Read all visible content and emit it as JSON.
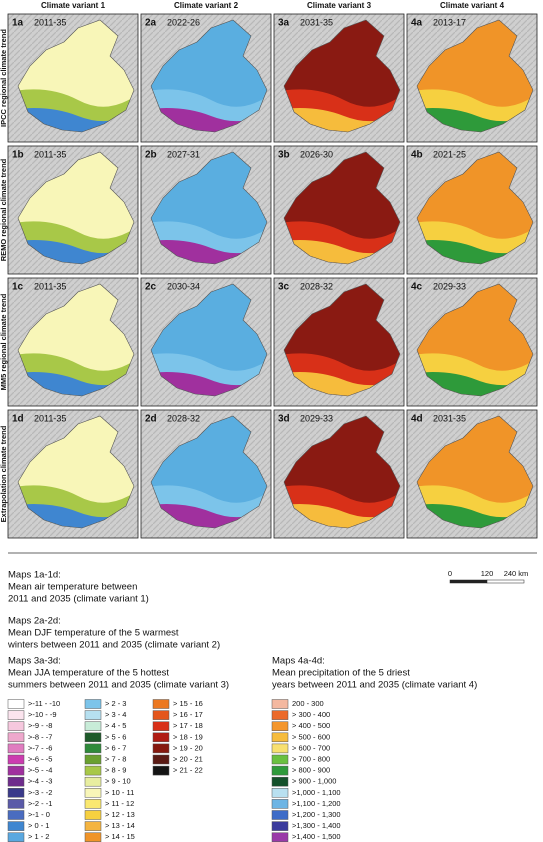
{
  "column_headers": [
    "Climate variant 1",
    "Climate variant 2",
    "Climate variant 3",
    "Climate variant 4"
  ],
  "row_labels": [
    "IPCC regional climate trend",
    "REMO regional climate trend",
    "MM5 regional climate trend",
    "Extrapolation climate trend"
  ],
  "panels": [
    [
      {
        "id": "1a",
        "period": "2011-35"
      },
      {
        "id": "2a",
        "period": "2022-26"
      },
      {
        "id": "3a",
        "period": "2031-35"
      },
      {
        "id": "4a",
        "period": "2013-17"
      }
    ],
    [
      {
        "id": "1b",
        "period": "2011-35"
      },
      {
        "id": "2b",
        "period": "2027-31"
      },
      {
        "id": "3b",
        "period": "2026-30"
      },
      {
        "id": "4b",
        "period": "2021-25"
      }
    ],
    [
      {
        "id": "1c",
        "period": "2011-35"
      },
      {
        "id": "2c",
        "period": "2030-34"
      },
      {
        "id": "3c",
        "period": "2028-32"
      },
      {
        "id": "4c",
        "period": "2029-33"
      }
    ],
    [
      {
        "id": "1d",
        "period": "2011-35"
      },
      {
        "id": "2d",
        "period": "2028-32"
      },
      {
        "id": "3d",
        "period": "2029-33"
      },
      {
        "id": "4d",
        "period": "2031-35"
      }
    ]
  ],
  "captions": [
    {
      "heading": "Maps 1a-1d:",
      "lines": [
        "Mean air temperature between",
        "2011 and 2035 (climate variant 1)"
      ]
    },
    {
      "heading": "Maps 2a-2d:",
      "lines": [
        "Mean DJF temperature of the 5 warmest",
        "winters between 2011 and 2035 (climate variant 2)"
      ]
    },
    {
      "heading": "Maps 3a-3d:",
      "lines": [
        "Mean JJA temperature of the 5 hottest",
        "summers between 2011 and 2035 (climate variant 3)"
      ]
    },
    {
      "heading": "Maps 4a-4d:",
      "lines": [
        "Mean precipitation of the 5 driest",
        "years between 2011 and 2035 (climate variant 4)"
      ]
    }
  ],
  "scale_bar": [
    "0",
    "120",
    "240 km"
  ],
  "legend": [
    [
      {
        "label": ">-11 - -10",
        "color": "#ffffff"
      },
      {
        "label": ">-10 - -9",
        "color": "#fbe4ee"
      },
      {
        "label": ">-9 - -8",
        "color": "#f6c8de"
      },
      {
        "label": ">-8 - -7",
        "color": "#eea8cc"
      },
      {
        "label": ">-7 - -6",
        "color": "#e07cc0"
      },
      {
        "label": ">-6 - -5",
        "color": "#cc3cb0"
      },
      {
        "label": ">-5 - -4",
        "color": "#a0309e"
      },
      {
        "label": ">-4 - -3",
        "color": "#6e2c8c"
      },
      {
        "label": ">-3 - -2",
        "color": "#3a3a8a"
      },
      {
        "label": ">-2 - -1",
        "color": "#5a5aa8"
      },
      {
        "label": ">-1 - 0",
        "color": "#4a6cc0"
      },
      {
        "label": "> 0 - 1",
        "color": "#3f86d0"
      },
      {
        "label": "> 1 - 2",
        "color": "#5aa8e0"
      }
    ],
    [
      {
        "label": "> 2 - 3",
        "color": "#7cc4ea"
      },
      {
        "label": "> 3 - 4",
        "color": "#b6e0f0"
      },
      {
        "label": "> 4 - 5",
        "color": "#c8ecd8"
      },
      {
        "label": "> 5 - 6",
        "color": "#1e5a2a"
      },
      {
        "label": "> 6 - 7",
        "color": "#2e8a3a"
      },
      {
        "label": "> 7 - 8",
        "color": "#6aa030"
      },
      {
        "label": "> 8 - 9",
        "color": "#a8c848"
      },
      {
        "label": "> 9 - 10",
        "color": "#e8eea0"
      },
      {
        "label": "> 10 - 11",
        "color": "#f8f6b8"
      },
      {
        "label": "> 11 - 12",
        "color": "#fae870"
      },
      {
        "label": "> 12 - 13",
        "color": "#f6d040"
      },
      {
        "label": "> 13 - 14",
        "color": "#f4b440"
      },
      {
        "label": "> 14 - 15",
        "color": "#f09428"
      }
    ],
    [
      {
        "label": "> 15 - 16",
        "color": "#ec7820"
      },
      {
        "label": "> 16 - 17",
        "color": "#e4561c"
      },
      {
        "label": "> 17 - 18",
        "color": "#d83018"
      },
      {
        "label": "> 18 - 19",
        "color": "#b01c14"
      },
      {
        "label": "> 19 - 20",
        "color": "#86180e"
      },
      {
        "label": "> 20 - 21",
        "color": "#5a1a14"
      },
      {
        "label": "> 21 - 22",
        "color": "#141414"
      }
    ],
    [
      {
        "label": "200 - 300",
        "color": "#f4b8a0"
      },
      {
        "label": "> 300 - 400",
        "color": "#ec6a2a"
      },
      {
        "label": "> 400 - 500",
        "color": "#f4962c"
      },
      {
        "label": "> 500 - 600",
        "color": "#f6bc3c"
      },
      {
        "label": "> 600 - 700",
        "color": "#f8e070"
      },
      {
        "label": "> 700 - 800",
        "color": "#6ac040"
      },
      {
        "label": "> 800 - 900",
        "color": "#2e9a3a"
      },
      {
        "label": "> 900 - 1,000",
        "color": "#14502a"
      },
      {
        "label": ">1,000 - 1,100",
        "color": "#b8e0f0"
      },
      {
        "label": ">1,100 - 1,200",
        "color": "#6cb4e4"
      },
      {
        "label": ">1,200 - 1,300",
        "color": "#3e6cc8"
      },
      {
        "label": ">1,300 - 1,400",
        "color": "#3a3a9c"
      },
      {
        "label": ">1,400 - 1,500",
        "color": "#9a3aa8"
      }
    ]
  ]
}
